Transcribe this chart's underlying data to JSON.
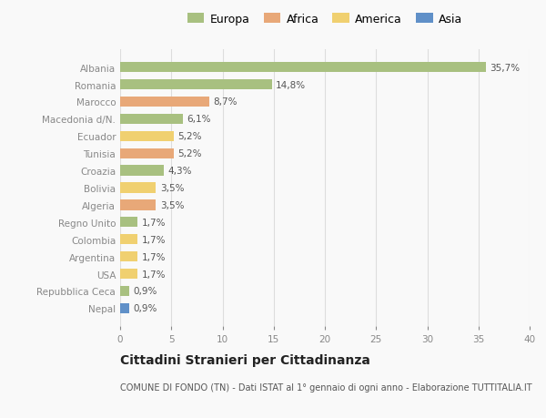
{
  "categories": [
    "Albania",
    "Romania",
    "Marocco",
    "Macedonia d/N.",
    "Ecuador",
    "Tunisia",
    "Croazia",
    "Bolivia",
    "Algeria",
    "Regno Unito",
    "Colombia",
    "Argentina",
    "USA",
    "Repubblica Ceca",
    "Nepal"
  ],
  "values": [
    35.7,
    14.8,
    8.7,
    6.1,
    5.2,
    5.2,
    4.3,
    3.5,
    3.5,
    1.7,
    1.7,
    1.7,
    1.7,
    0.9,
    0.9
  ],
  "labels": [
    "35,7%",
    "14,8%",
    "8,7%",
    "6,1%",
    "5,2%",
    "5,2%",
    "4,3%",
    "3,5%",
    "3,5%",
    "1,7%",
    "1,7%",
    "1,7%",
    "1,7%",
    "0,9%",
    "0,9%"
  ],
  "continent": [
    "Europa",
    "Europa",
    "Africa",
    "Europa",
    "America",
    "Africa",
    "Europa",
    "America",
    "Africa",
    "Europa",
    "America",
    "America",
    "America",
    "Europa",
    "Asia"
  ],
  "colors": {
    "Europa": "#a8c080",
    "Africa": "#e8a878",
    "America": "#f0d070",
    "Asia": "#6090c8"
  },
  "legend_labels": [
    "Europa",
    "Africa",
    "America",
    "Asia"
  ],
  "legend_colors": [
    "#a8c080",
    "#e8a878",
    "#f0d070",
    "#6090c8"
  ],
  "xlim": [
    0,
    40
  ],
  "xticks": [
    0,
    5,
    10,
    15,
    20,
    25,
    30,
    35,
    40
  ],
  "title": "Cittadini Stranieri per Cittadinanza",
  "subtitle": "COMUNE DI FONDO (TN) - Dati ISTAT al 1° gennaio di ogni anno - Elaborazione TUTTITALIA.IT",
  "background_color": "#f9f9f9",
  "grid_color": "#dddddd",
  "bar_height": 0.6,
  "label_fontsize": 7.5,
  "tick_fontsize": 7.5,
  "title_fontsize": 10,
  "subtitle_fontsize": 7
}
